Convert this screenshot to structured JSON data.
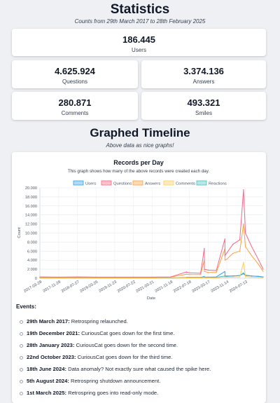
{
  "header": {
    "title": "Statistics",
    "subtitle": "Counts from 29th March 2017 to 28th February 2025"
  },
  "stats": {
    "users": {
      "value": "186.445",
      "label": "Users"
    },
    "questions": {
      "value": "4.625.924",
      "label": "Questions"
    },
    "answers": {
      "value": "3.374.136",
      "label": "Answers"
    },
    "comments": {
      "value": "280.871",
      "label": "Comments"
    },
    "smiles": {
      "value": "493.321",
      "label": "Smiles"
    }
  },
  "timeline": {
    "title": "Graphed Timeline",
    "subtitle": "Above data as nice graphs!"
  },
  "colors": {
    "users": "#36a2eb",
    "questions": "#ff6384",
    "answers": "#ff9f40",
    "comments": "#ffcd56",
    "reactions": "#4bc0c0"
  },
  "chart_data": {
    "type": "line",
    "title": "Records per Day",
    "subtitle": "This graph shows how many of the above records were created each day.",
    "xlabel": "Date",
    "ylabel": "Count",
    "ylim": [
      0,
      20000
    ],
    "yticks": [
      "20.000",
      "18.000",
      "16.000",
      "14.000",
      "12.000",
      "10.000",
      "8.000",
      "6.000",
      "4.000",
      "2.000",
      "0"
    ],
    "xticks": [
      "2017-03-29",
      "2017-11-28",
      "2018-07-27",
      "2019-03-26",
      "2019-11-23",
      "2020-07-22",
      "2021-03-21",
      "2021-11-18",
      "2022-07-18",
      "2023-03-17",
      "2023-11-14",
      "2024-07-13"
    ],
    "legend_position": "top",
    "grid": true,
    "x": [
      "2017-03-29",
      "2017-11-28",
      "2018-07-27",
      "2019-03-26",
      "2019-11-23",
      "2020-07-22",
      "2021-03-21",
      "2021-11-18",
      "2022-06-10",
      "2022-06-18",
      "2022-07-18",
      "2022-12-10",
      "2023-01-27",
      "2023-01-28",
      "2023-03-17",
      "2023-07-01",
      "2023-10-21",
      "2023-10-22",
      "2023-11-14",
      "2024-02-01",
      "2024-05-01",
      "2024-06-18",
      "2024-07-13",
      "2024-10-01",
      "2025-01-01",
      "2025-02-28"
    ],
    "series": [
      {
        "name": "Users",
        "values": [
          50,
          40,
          40,
          40,
          40,
          40,
          40,
          50,
          150,
          200,
          200,
          180,
          400,
          250,
          250,
          300,
          1500,
          500,
          500,
          500,
          600,
          1000,
          600,
          500,
          400,
          300
        ]
      },
      {
        "name": "Questions",
        "values": [
          300,
          250,
          300,
          250,
          250,
          250,
          250,
          300,
          1400,
          1300,
          1200,
          1100,
          6600,
          2000,
          1800,
          1700,
          8700,
          5000,
          5600,
          7500,
          8500,
          19600,
          10000,
          7000,
          4000,
          2000
        ]
      },
      {
        "name": "Answers",
        "values": [
          200,
          150,
          200,
          150,
          150,
          150,
          150,
          250,
          900,
          850,
          800,
          800,
          4000,
          1500,
          1300,
          1250,
          6500,
          4000,
          4200,
          5500,
          6000,
          12000,
          7000,
          5000,
          3000,
          1500
        ]
      },
      {
        "name": "Comments",
        "values": [
          30,
          20,
          20,
          20,
          20,
          20,
          20,
          20,
          80,
          80,
          80,
          80,
          150,
          100,
          100,
          100,
          300,
          200,
          200,
          250,
          300,
          3500,
          350,
          250,
          200,
          150
        ]
      },
      {
        "name": "Reactions",
        "values": [
          60,
          50,
          50,
          50,
          50,
          50,
          50,
          60,
          150,
          150,
          150,
          150,
          300,
          200,
          200,
          200,
          500,
          400,
          400,
          500,
          600,
          1200,
          700,
          500,
          400,
          300
        ]
      }
    ]
  },
  "events": {
    "title": "Events:",
    "items": [
      {
        "date": "29th March 2017:",
        "text": " Retrospring relaunched."
      },
      {
        "date": "19th December 2021:",
        "text": " CuriousCat goes down for the first time."
      },
      {
        "date": "28th January 2023:",
        "text": " CuriousCat goes down for the second time."
      },
      {
        "date": "22nd October 2023:",
        "text": " CuriousCat goes down for the third time."
      },
      {
        "date": "18th June 2024:",
        "text": " Data anomaly? Not exactly sure what caused the spike here."
      },
      {
        "date": "5th August 2024:",
        "text": " Retrospring shutdown announcement."
      },
      {
        "date": "1st March 2025:",
        "text": " Retrospring goes into read-only mode."
      }
    ]
  }
}
